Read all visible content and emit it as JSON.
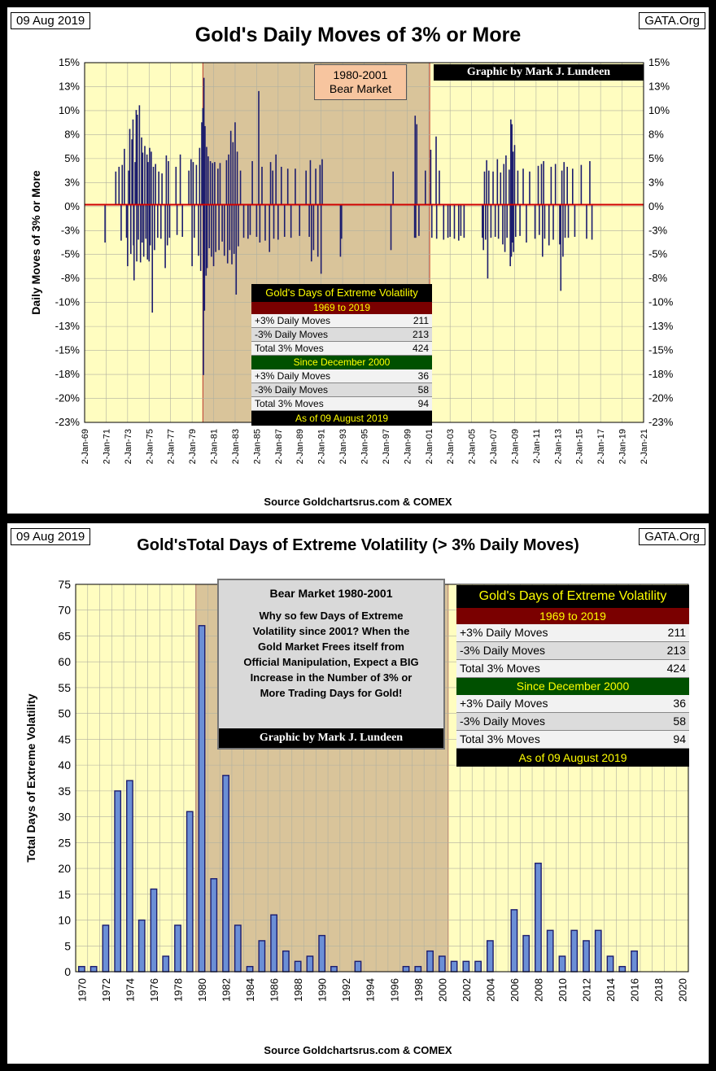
{
  "panel1": {
    "date": "09 Aug 2019",
    "site": "GATA.Org",
    "title": "Gold's Daily Moves of 3% or More",
    "credit": "Graphic by Mark J. Lundeen",
    "bear_label_line1": "1980-2001",
    "bear_label_line2": "Bear Market",
    "source": "Source Goldchartsrus.com & COMEX",
    "stats": {
      "header": "Gold's Days of Extreme Volatility",
      "period1": "1969 to 2019",
      "rows1": [
        {
          "label": "+3% Daily Moves",
          "value": "211"
        },
        {
          "label": "-3% Daily Moves",
          "value": "213"
        },
        {
          "label": "Total 3% Moves",
          "value": "424"
        }
      ],
      "period2": "Since December 2000",
      "rows2": [
        {
          "label": "+3% Daily Moves",
          "value": "36"
        },
        {
          "label": "-3% Daily Moves",
          "value": "58"
        },
        {
          "label": "Total 3% Moves",
          "value": "94"
        }
      ],
      "footer": "As of 09 August 2019"
    }
  },
  "panel2": {
    "date": "09 Aug 2019",
    "site": "GATA.Org",
    "title": "Gold'sTotal Days of Extreme Volatility (> 3% Daily Moves)",
    "source": "Source Goldchartsrus.com & COMEX",
    "message": {
      "heading": "Bear Market  1980-2001",
      "lines": [
        "Why so few Days of Extreme",
        "Volatility since 2001?  When the",
        "Gold Market Frees itself from",
        "Official Manipulation, Expect a BIG",
        "Increase in the Number of 3% or",
        "More Trading Days for Gold!"
      ],
      "credit": "Graphic by Mark J. Lundeen"
    },
    "stats": {
      "header": "Gold's Days of Extreme Volatility",
      "period1": "1969 to 2019",
      "rows1": [
        {
          "label": "+3% Daily Moves",
          "value": "211"
        },
        {
          "label": "-3% Daily Moves",
          "value": "213"
        },
        {
          "label": "Total 3% Moves",
          "value": "424"
        }
      ],
      "period2": "Since December 2000",
      "rows2": [
        {
          "label": "+3% Daily Moves",
          "value": "36"
        },
        {
          "label": "-3% Daily Moves",
          "value": "58"
        },
        {
          "label": "Total 3% Moves",
          "value": "94"
        }
      ],
      "footer": "As of 09 August 2019"
    }
  },
  "colors": {
    "plot_bg": "#fffdc0",
    "bear_shade": "#d9c49a",
    "bar": "#1c1c6e",
    "bar2_fill": "#6b8fd6",
    "zero_line": "#d00000",
    "bear_border": "#c0392b",
    "grid": "#b0b0a0"
  },
  "chart_data": [
    {
      "type": "bar",
      "title": "Gold's Daily Moves of 3% or More",
      "ylabel": "Daily Moves of 3% or More",
      "xlabel": "",
      "ylim": [
        -23,
        15
      ],
      "yticks": [
        "15%",
        "13%",
        "10%",
        "8%",
        "5%",
        "3%",
        "0%",
        "-3%",
        "-5%",
        "-8%",
        "-10%",
        "-13%",
        "-15%",
        "-18%",
        "-20%",
        "-23%"
      ],
      "xticks": [
        "2-Jan-69",
        "2-Jan-71",
        "2-Jan-73",
        "2-Jan-75",
        "2-Jan-77",
        "2-Jan-79",
        "2-Jan-81",
        "2-Jan-83",
        "2-Jan-85",
        "2-Jan-87",
        "2-Jan-89",
        "2-Jan-91",
        "2-Jan-93",
        "2-Jan-95",
        "2-Jan-97",
        "2-Jan-99",
        "2-Jan-01",
        "2-Jan-03",
        "2-Jan-05",
        "2-Jan-07",
        "2-Jan-09",
        "2-Jan-11",
        "2-Jan-13",
        "2-Jan-15",
        "2-Jan-17",
        "2-Jan-19",
        "2-Jan-21"
      ],
      "x_range": [
        1969,
        2021
      ],
      "shaded_region": [
        1980.0,
        2001.1
      ],
      "moves": [
        [
          1970.9,
          -4.0
        ],
        [
          1971.9,
          3.5
        ],
        [
          1972.2,
          4.0
        ],
        [
          1972.4,
          -3.8
        ],
        [
          1972.5,
          4.2
        ],
        [
          1972.7,
          5.9
        ],
        [
          1972.9,
          -3.5
        ],
        [
          1973.0,
          -6.5
        ],
        [
          1973.1,
          3.6
        ],
        [
          1973.2,
          8.0
        ],
        [
          1973.3,
          -5.2
        ],
        [
          1973.4,
          6.9
        ],
        [
          1973.5,
          9.0
        ],
        [
          1973.55,
          -4.3
        ],
        [
          1973.6,
          -8.0
        ],
        [
          1973.7,
          4.5
        ],
        [
          1973.8,
          10.0
        ],
        [
          1973.85,
          -6.0
        ],
        [
          1973.9,
          9.5
        ],
        [
          1974.0,
          -3.7
        ],
        [
          1974.1,
          10.5
        ],
        [
          1974.2,
          -6.1
        ],
        [
          1974.3,
          7.1
        ],
        [
          1974.35,
          -4.0
        ],
        [
          1974.4,
          5.5
        ],
        [
          1974.5,
          -5.5
        ],
        [
          1974.6,
          6.2
        ],
        [
          1974.7,
          -3.6
        ],
        [
          1974.8,
          5.3
        ],
        [
          1974.85,
          -5.8
        ],
        [
          1974.9,
          4.5
        ],
        [
          1975.0,
          -6.0
        ],
        [
          1975.05,
          6.0
        ],
        [
          1975.1,
          -4.3
        ],
        [
          1975.2,
          5.6
        ],
        [
          1975.3,
          -11.4
        ],
        [
          1975.4,
          4.0
        ],
        [
          1975.5,
          -4.8
        ],
        [
          1975.6,
          4.3
        ],
        [
          1975.8,
          -3.5
        ],
        [
          1975.9,
          3.5
        ],
        [
          1976.1,
          -3.6
        ],
        [
          1976.2,
          3.3
        ],
        [
          1976.5,
          -6.7
        ],
        [
          1976.6,
          5.2
        ],
        [
          1976.7,
          -4.3
        ],
        [
          1976.8,
          4.6
        ],
        [
          1976.9,
          -3.5
        ],
        [
          1977.5,
          4.0
        ],
        [
          1977.6,
          -3.2
        ],
        [
          1977.9,
          5.3
        ],
        [
          1978.1,
          -3.4
        ],
        [
          1978.7,
          3.6
        ],
        [
          1978.9,
          4.8
        ],
        [
          1979.0,
          -6.5
        ],
        [
          1979.1,
          4.5
        ],
        [
          1979.2,
          -3.5
        ],
        [
          1979.4,
          4.2
        ],
        [
          1979.6,
          -5.4
        ],
        [
          1979.7,
          6.0
        ],
        [
          1979.8,
          -7.0
        ],
        [
          1979.9,
          8.7
        ],
        [
          1980.0,
          10.2
        ],
        [
          1980.05,
          -18.0
        ],
        [
          1980.1,
          13.4
        ],
        [
          1980.15,
          -11.2
        ],
        [
          1980.2,
          8.3
        ],
        [
          1980.3,
          -7.5
        ],
        [
          1980.35,
          6.1
        ],
        [
          1980.4,
          -6.7
        ],
        [
          1980.5,
          5.1
        ],
        [
          1980.6,
          -4.6
        ],
        [
          1980.7,
          4.6
        ],
        [
          1980.8,
          -5.5
        ],
        [
          1980.9,
          4.4
        ],
        [
          1981.0,
          -6.5
        ],
        [
          1981.1,
          4.5
        ],
        [
          1981.2,
          -5.0
        ],
        [
          1981.4,
          3.8
        ],
        [
          1981.5,
          -4.8
        ],
        [
          1981.6,
          4.4
        ],
        [
          1981.8,
          -3.9
        ],
        [
          1982.0,
          -5.4
        ],
        [
          1982.2,
          4.7
        ],
        [
          1982.3,
          -6.2
        ],
        [
          1982.4,
          5.3
        ],
        [
          1982.5,
          -4.8
        ],
        [
          1982.6,
          7.8
        ],
        [
          1982.7,
          -6.3
        ],
        [
          1982.8,
          6.6
        ],
        [
          1982.9,
          -5.2
        ],
        [
          1983.0,
          8.7
        ],
        [
          1983.1,
          -9.5
        ],
        [
          1983.2,
          5.6
        ],
        [
          1983.3,
          -4.4
        ],
        [
          1983.5,
          3.6
        ],
        [
          1983.8,
          -3.5
        ],
        [
          1984.2,
          -3.6
        ],
        [
          1984.4,
          -3.2
        ],
        [
          1984.6,
          4.6
        ],
        [
          1985.0,
          -3.4
        ],
        [
          1985.2,
          12.0
        ],
        [
          1985.3,
          -4.0
        ],
        [
          1985.5,
          4.0
        ],
        [
          1985.8,
          -3.8
        ],
        [
          1986.2,
          -5.0
        ],
        [
          1986.3,
          4.5
        ],
        [
          1986.5,
          3.6
        ],
        [
          1986.6,
          -3.6
        ],
        [
          1986.8,
          5.3
        ],
        [
          1987.0,
          -3.7
        ],
        [
          1987.3,
          4.0
        ],
        [
          1987.6,
          -3.4
        ],
        [
          1987.9,
          3.8
        ],
        [
          1988.2,
          -3.5
        ],
        [
          1988.6,
          3.8
        ],
        [
          1989.0,
          -3.3
        ],
        [
          1989.6,
          3.6
        ],
        [
          1989.9,
          -3.4
        ],
        [
          1990.0,
          4.7
        ],
        [
          1990.1,
          -6.0
        ],
        [
          1990.3,
          -4.8
        ],
        [
          1990.5,
          3.8
        ],
        [
          1990.7,
          -5.5
        ],
        [
          1990.9,
          4.2
        ],
        [
          1991.0,
          -7.3
        ],
        [
          1991.1,
          4.8
        ],
        [
          1992.8,
          -5.5
        ],
        [
          1992.9,
          -3.6
        ],
        [
          1997.5,
          -4.8
        ],
        [
          1997.7,
          3.5
        ],
        [
          1999.7,
          -3.5
        ],
        [
          1999.75,
          9.4
        ],
        [
          1999.8,
          -3.5
        ],
        [
          1999.9,
          8.5
        ],
        [
          2000.1,
          -3.3
        ],
        [
          2000.7,
          3.6
        ],
        [
          2001.2,
          5.8
        ],
        [
          2001.3,
          -3.5
        ],
        [
          2001.7,
          7.2
        ],
        [
          2001.75,
          -3.6
        ],
        [
          2002.0,
          3.6
        ],
        [
          2002.4,
          -3.7
        ],
        [
          2002.8,
          -3.5
        ],
        [
          2003.0,
          -3.4
        ],
        [
          2003.4,
          -3.6
        ],
        [
          2003.8,
          -3.8
        ],
        [
          2004.0,
          -3.3
        ],
        [
          2004.3,
          -3.5
        ],
        [
          2006.0,
          -3.5
        ],
        [
          2006.1,
          -4.8
        ],
        [
          2006.2,
          3.5
        ],
        [
          2006.3,
          -3.7
        ],
        [
          2006.4,
          4.7
        ],
        [
          2006.5,
          -7.8
        ],
        [
          2006.6,
          3.6
        ],
        [
          2006.8,
          -3.5
        ],
        [
          2007.0,
          3.5
        ],
        [
          2007.2,
          -3.4
        ],
        [
          2007.4,
          4.8
        ],
        [
          2007.5,
          -3.6
        ],
        [
          2007.7,
          3.4
        ],
        [
          2007.9,
          -4.2
        ],
        [
          2008.0,
          4.3
        ],
        [
          2008.1,
          -5.0
        ],
        [
          2008.2,
          5.2
        ],
        [
          2008.3,
          -3.5
        ],
        [
          2008.5,
          3.7
        ],
        [
          2008.6,
          -6.5
        ],
        [
          2008.65,
          9.0
        ],
        [
          2008.7,
          -5.5
        ],
        [
          2008.75,
          8.5
        ],
        [
          2008.8,
          -4.0
        ],
        [
          2008.85,
          5.6
        ],
        [
          2008.9,
          -5.0
        ],
        [
          2009.0,
          6.3
        ],
        [
          2009.1,
          -3.4
        ],
        [
          2009.3,
          3.6
        ],
        [
          2009.5,
          -3.3
        ],
        [
          2009.8,
          3.8
        ],
        [
          2010.1,
          -4.0
        ],
        [
          2010.4,
          3.5
        ],
        [
          2010.9,
          -3.6
        ],
        [
          2011.2,
          4.1
        ],
        [
          2011.3,
          -3.2
        ],
        [
          2011.5,
          4.3
        ],
        [
          2011.6,
          -5.5
        ],
        [
          2011.7,
          4.6
        ],
        [
          2011.8,
          -3.6
        ],
        [
          2012.2,
          -4.3
        ],
        [
          2012.4,
          4.0
        ],
        [
          2012.6,
          -3.7
        ],
        [
          2012.8,
          4.3
        ],
        [
          2013.2,
          -4.2
        ],
        [
          2013.3,
          -9.1
        ],
        [
          2013.4,
          3.6
        ],
        [
          2013.5,
          -5.5
        ],
        [
          2013.6,
          4.5
        ],
        [
          2013.7,
          -3.5
        ],
        [
          2013.9,
          4.0
        ],
        [
          2014.0,
          -3.5
        ],
        [
          2014.4,
          3.8
        ],
        [
          2014.6,
          -3.4
        ],
        [
          2015.2,
          4.2
        ],
        [
          2015.7,
          -3.6
        ],
        [
          2016.0,
          4.6
        ],
        [
          2016.2,
          -3.7
        ]
      ]
    },
    {
      "type": "bar",
      "title": "Gold'sTotal Days of Extreme Volatility (> 3% Daily Moves)",
      "ylabel": "Total Days of Extreme Volatility",
      "xlabel": "",
      "ylim": [
        0,
        75
      ],
      "yticks": [
        0,
        5,
        10,
        15,
        20,
        25,
        30,
        35,
        40,
        45,
        50,
        55,
        60,
        65,
        70,
        75
      ],
      "xticks": [
        "1970",
        "1972",
        "1974",
        "1976",
        "1978",
        "1980",
        "1982",
        "1984",
        "1986",
        "1988",
        "1990",
        "1992",
        "1994",
        "1996",
        "1998",
        "2000",
        "2002",
        "2004",
        "2006",
        "2008",
        "2010",
        "2012",
        "2014",
        "2016",
        "2018",
        "2020"
      ],
      "shaded_region": [
        1979.5,
        2000.5
      ],
      "categories": [
        1970,
        1971,
        1972,
        1973,
        1974,
        1975,
        1976,
        1977,
        1978,
        1979,
        1980,
        1981,
        1982,
        1983,
        1984,
        1985,
        1986,
        1987,
        1988,
        1989,
        1990,
        1991,
        1992,
        1993,
        1994,
        1995,
        1996,
        1997,
        1998,
        1999,
        2000,
        2001,
        2002,
        2003,
        2004,
        2005,
        2006,
        2007,
        2008,
        2009,
        2010,
        2011,
        2012,
        2013,
        2014,
        2015,
        2016,
        2017,
        2018,
        2019,
        2020
      ],
      "values": [
        1,
        1,
        9,
        35,
        37,
        10,
        16,
        3,
        9,
        31,
        67,
        18,
        38,
        9,
        1,
        6,
        11,
        4,
        2,
        3,
        7,
        1,
        0,
        2,
        0,
        0,
        0,
        1,
        1,
        4,
        3,
        2,
        2,
        2,
        6,
        0,
        12,
        7,
        21,
        8,
        3,
        8,
        6,
        8,
        3,
        1,
        4,
        0,
        0,
        0,
        0
      ]
    }
  ]
}
